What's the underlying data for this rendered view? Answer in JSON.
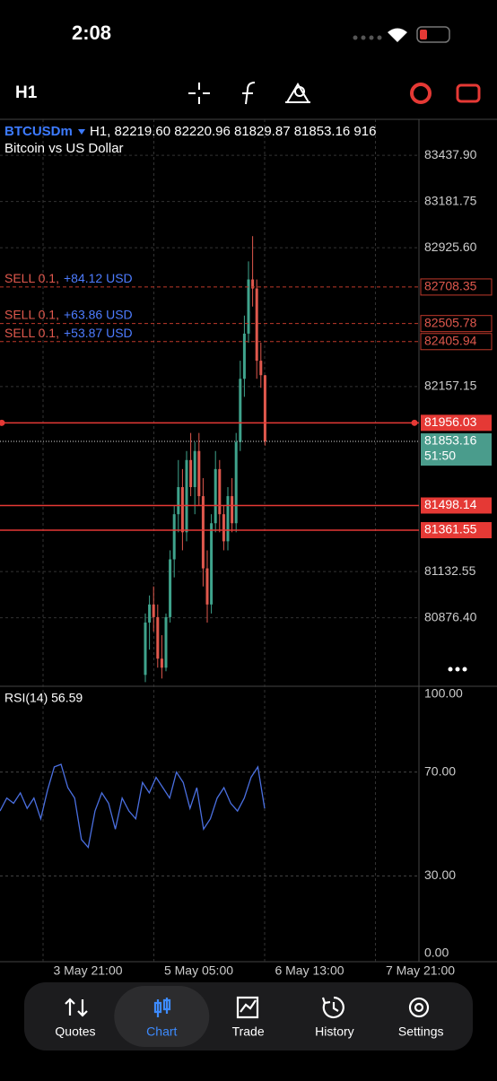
{
  "status_bar": {
    "time": "2:08"
  },
  "toolbar": {
    "timeframe": "H1"
  },
  "chart": {
    "symbol": "BTCUSDm",
    "header": "H1, 82219.60 82220.96 81829.87 81853.16 916",
    "description": "Bitcoin vs US Dollar",
    "ylim": [
      80497,
      83637
    ],
    "price_ticks": [
      {
        "value": 83437.9,
        "label": "83437.90"
      },
      {
        "value": 83181.75,
        "label": "83181.75"
      },
      {
        "value": 82925.6,
        "label": "82925.60"
      },
      {
        "value": 82157.15,
        "label": "82157.15"
      },
      {
        "value": 81132.55,
        "label": "81132.55"
      },
      {
        "value": 80876.4,
        "label": "80876.40"
      }
    ],
    "orders": [
      {
        "side": "SELL 0.1,",
        "profit": "+84.12 USD",
        "price": {
          "value": 82708.35,
          "label": "82708.35"
        }
      },
      {
        "side": "SELL 0.1,",
        "profit": "+63.86 USD",
        "price": {
          "value": 82505.78,
          "label": "82505.78"
        }
      },
      {
        "side": "SELL 0.1,",
        "profit": "+53.87 USD",
        "price": {
          "value": 82405.94,
          "label": "82405.94"
        }
      }
    ],
    "levels": [
      {
        "value": 81956.03,
        "label": "81956.03"
      },
      {
        "value": 81498.14,
        "label": "81498.14"
      },
      {
        "value": 81361.55,
        "label": "81361.55"
      }
    ],
    "current_price": {
      "value": 81853.16,
      "label": "81853.16"
    },
    "bar_timer": "51:50",
    "candles": [
      [
        80560,
        80900,
        80520,
        80850
      ],
      [
        80850,
        81000,
        80700,
        80950
      ],
      [
        80950,
        81050,
        80800,
        80880
      ],
      [
        80880,
        80950,
        80600,
        80650
      ],
      [
        80650,
        80780,
        80540,
        80600
      ],
      [
        80600,
        80900,
        80580,
        80880
      ],
      [
        80880,
        81250,
        80850,
        81200
      ],
      [
        81200,
        81500,
        81100,
        81450
      ],
      [
        81450,
        81750,
        81350,
        81600
      ],
      [
        81600,
        81700,
        81250,
        81350
      ],
      [
        81350,
        81800,
        81300,
        81750
      ],
      [
        81750,
        81900,
        81550,
        81600
      ],
      [
        81600,
        81850,
        81450,
        81800
      ],
      [
        81800,
        81900,
        81500,
        81550
      ],
      [
        81550,
        81650,
        81050,
        81150
      ],
      [
        81150,
        81250,
        80850,
        80950
      ],
      [
        80950,
        81450,
        80900,
        81400
      ],
      [
        81400,
        81800,
        81350,
        81700
      ],
      [
        81700,
        81750,
        81350,
        81450
      ],
      [
        81450,
        81500,
        81250,
        81300
      ],
      [
        81300,
        81600,
        81250,
        81550
      ],
      [
        81550,
        81650,
        81350,
        81400
      ],
      [
        81400,
        81900,
        81350,
        81850
      ],
      [
        81850,
        82300,
        81800,
        82200
      ],
      [
        82200,
        82550,
        82100,
        82450
      ],
      [
        82450,
        82850,
        82400,
        82750
      ],
      [
        82750,
        82990,
        82600,
        82700
      ],
      [
        82700,
        82750,
        82200,
        82300
      ],
      [
        82300,
        82400,
        82150,
        82220
      ],
      [
        82219.6,
        82220.96,
        81829.87,
        81853.16
      ]
    ],
    "x_labels": [
      "3 May 21:00",
      "5 May 05:00",
      "6 May 13:00",
      "7 May 21:00"
    ]
  },
  "rsi": {
    "title": "RSI(14) 56.59",
    "ylim": [
      -3.1,
      103.1
    ],
    "ticks": [
      {
        "value": 100,
        "label": "100.00"
      },
      {
        "value": 70,
        "label": "70.00"
      },
      {
        "value": 30,
        "label": "30.00"
      },
      {
        "value": 0,
        "label": "0.00"
      }
    ],
    "values": [
      55,
      60,
      58,
      62,
      56,
      60,
      52,
      63,
      72,
      73,
      64,
      60,
      44,
      41,
      55,
      62,
      58,
      48,
      60,
      55,
      52,
      66,
      62,
      68,
      64,
      60,
      70,
      66,
      56,
      64,
      48,
      52,
      60,
      64,
      58,
      55,
      60,
      68,
      72,
      56
    ]
  },
  "nav": {
    "selected": 1,
    "items": [
      "Quotes",
      "Chart",
      "Trade",
      "History",
      "Settings"
    ]
  }
}
